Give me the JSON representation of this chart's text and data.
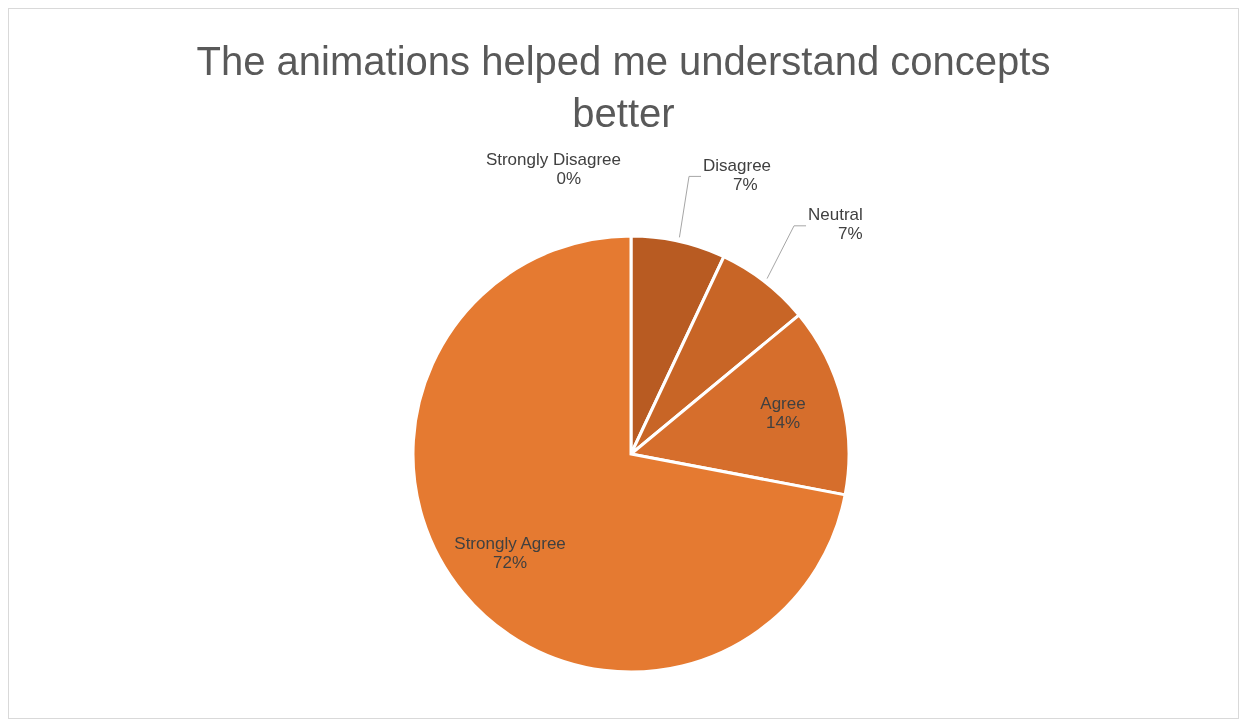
{
  "chart_data": {
    "type": "pie",
    "title": "The animations helped me understand concepts better",
    "categories": [
      "Strongly Disagree",
      "Disagree",
      "Neutral",
      "Agree",
      "Strongly Agree"
    ],
    "values": [
      0,
      7,
      7,
      14,
      72
    ],
    "value_labels": [
      "0%",
      "7%",
      "7%",
      "14%",
      "72%"
    ],
    "colors": [
      "#a34f1c",
      "#b85b22",
      "#c86526",
      "#d66e2c",
      "#e57a31"
    ],
    "legend": false
  }
}
